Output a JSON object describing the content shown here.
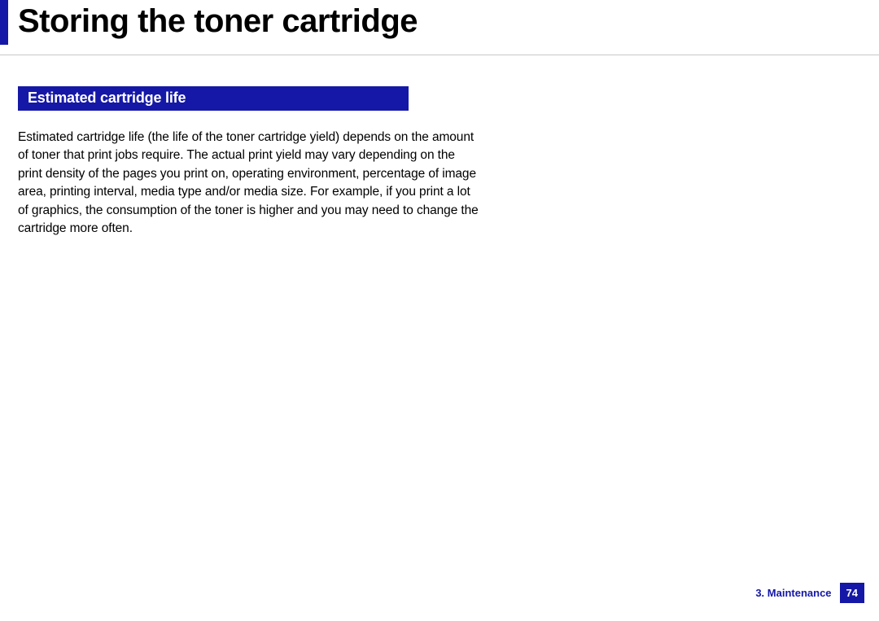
{
  "header": {
    "title": "Storing the toner cartridge",
    "accent_color": "#1518a6"
  },
  "section": {
    "title": "Estimated cartridge life",
    "body": "Estimated cartridge life (the life of the toner cartridge yield) depends on the amount of toner that print jobs require. The actual print yield may vary depending on the print density of the pages you print on, operating environment, percentage of image area, printing interval, media type and/or media size. For example, if you print a lot of graphics, the consumption of the toner is higher and you may need to change the cartridge more often."
  },
  "footer": {
    "chapter": "3.  Maintenance",
    "page": "74"
  }
}
